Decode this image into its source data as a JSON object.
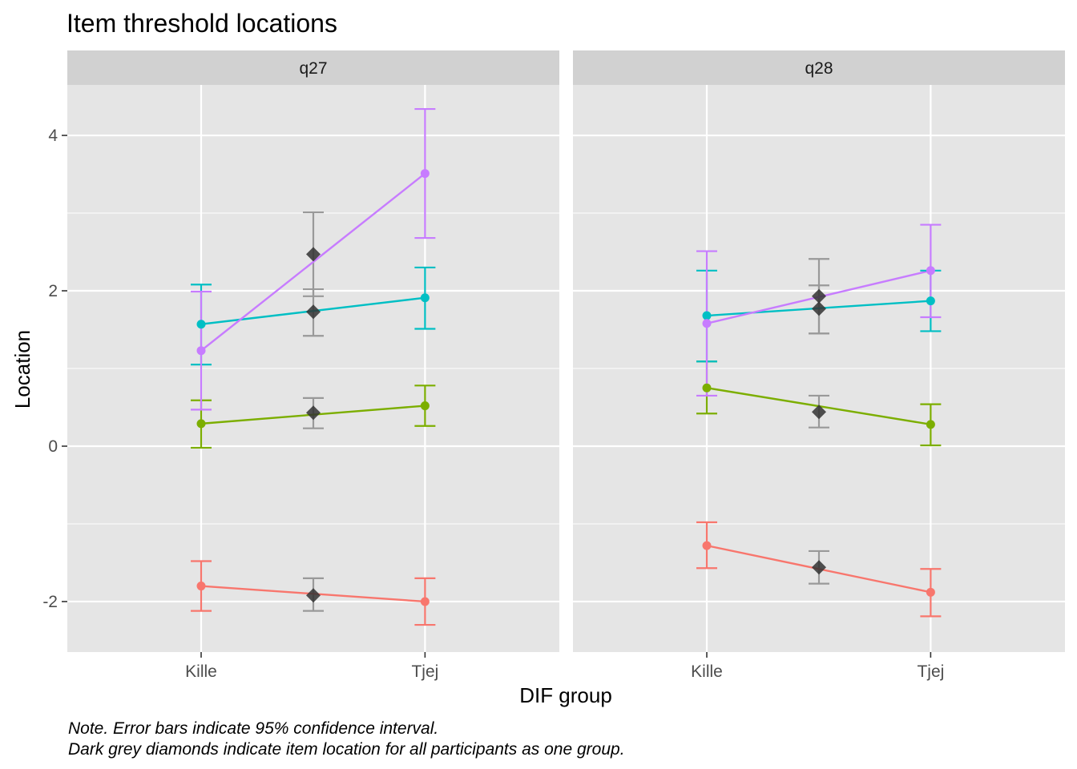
{
  "chart_data": {
    "type": "line",
    "title": "Item threshold locations",
    "xlabel": "DIF group",
    "ylabel": "Location",
    "categories": [
      "Kille",
      "Tjej"
    ],
    "ylim": [
      -2.65,
      4.65
    ],
    "yticks": [
      -2,
      0,
      2,
      4
    ],
    "grid": true,
    "legend": "none",
    "captions": [
      "Note. Error bars indicate 95% confidence interval.",
      "Dark grey diamonds indicate item location for all participants as one group."
    ],
    "colors": {
      "threshold_1": "#f8766d",
      "threshold_2": "#7cae00",
      "threshold_3": "#00bfc4",
      "threshold_4": "#c77cff",
      "overall": "#333333",
      "overall_errorbar": "#999999",
      "panel_bg": "#e5e5e5",
      "strip_bg": "#d1d1d1",
      "grid": "#ffffff"
    },
    "panels": [
      {
        "name": "q27",
        "series": [
          {
            "color_key": "threshold_1",
            "values": [
              -1.8,
              -2.0
            ],
            "lower": [
              -2.12,
              -2.3
            ],
            "upper": [
              -1.48,
              -1.7
            ]
          },
          {
            "color_key": "threshold_2",
            "values": [
              0.29,
              0.52
            ],
            "lower": [
              -0.02,
              0.26
            ],
            "upper": [
              0.59,
              0.78
            ]
          },
          {
            "color_key": "threshold_3",
            "values": [
              1.57,
              1.91
            ],
            "lower": [
              1.05,
              1.51
            ],
            "upper": [
              2.08,
              2.3
            ]
          },
          {
            "color_key": "threshold_4",
            "values": [
              1.23,
              3.51
            ],
            "lower": [
              0.47,
              2.68
            ],
            "upper": [
              1.99,
              4.34
            ]
          }
        ],
        "overall": [
          {
            "value": -1.92,
            "lower": -2.12,
            "upper": -1.7
          },
          {
            "value": 0.43,
            "lower": 0.23,
            "upper": 0.62
          },
          {
            "value": 1.73,
            "lower": 1.42,
            "upper": 2.02
          },
          {
            "value": 2.47,
            "lower": 1.93,
            "upper": 3.01
          }
        ]
      },
      {
        "name": "q28",
        "series": [
          {
            "color_key": "threshold_1",
            "values": [
              -1.28,
              -1.88
            ],
            "lower": [
              -1.57,
              -2.19
            ],
            "upper": [
              -0.98,
              -1.58
            ]
          },
          {
            "color_key": "threshold_2",
            "values": [
              0.75,
              0.28
            ],
            "lower": [
              0.42,
              0.01
            ],
            "upper": [
              1.09,
              0.54
            ]
          },
          {
            "color_key": "threshold_3",
            "values": [
              1.68,
              1.87
            ],
            "lower": [
              1.09,
              1.48
            ],
            "upper": [
              2.26,
              2.26
            ]
          },
          {
            "color_key": "threshold_4",
            "values": [
              1.58,
              2.26
            ],
            "lower": [
              0.65,
              1.66
            ],
            "upper": [
              2.51,
              2.85
            ]
          }
        ],
        "overall": [
          {
            "value": -1.56,
            "lower": -1.77,
            "upper": -1.35
          },
          {
            "value": 0.44,
            "lower": 0.24,
            "upper": 0.65
          },
          {
            "value": 1.77,
            "lower": 1.45,
            "upper": 2.07
          },
          {
            "value": 1.93,
            "lower": 1.45,
            "upper": 2.41
          }
        ]
      }
    ]
  }
}
